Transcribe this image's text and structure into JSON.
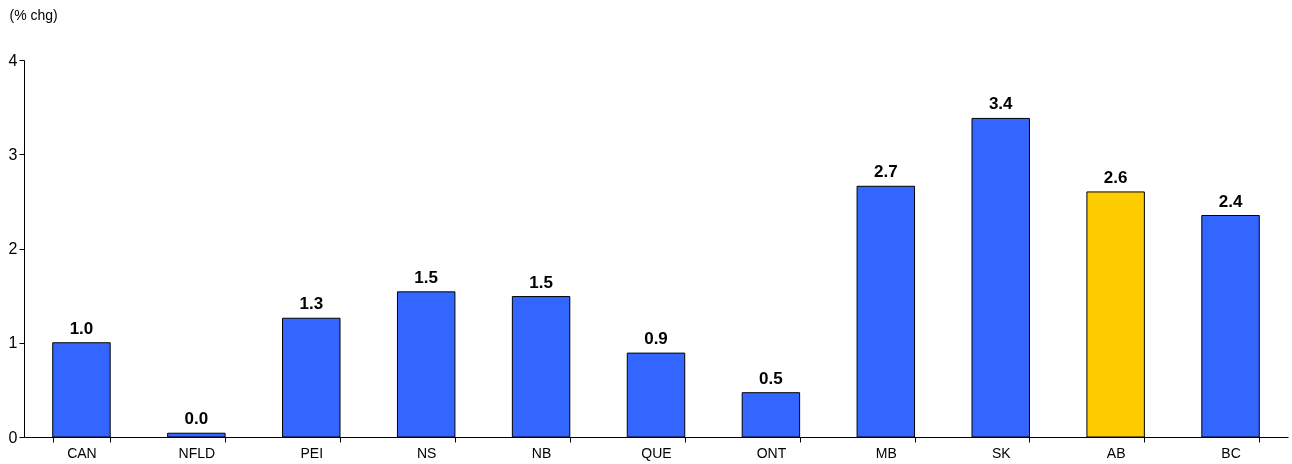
{
  "chart_data": {
    "type": "bar",
    "ylabel": "(% chg)",
    "categories": [
      "CAN",
      "NFLD",
      "PEI",
      "NS",
      "NB",
      "QUE",
      "ONT",
      "MB",
      "SK",
      "AB",
      "BC"
    ],
    "values": [
      1.0,
      0.04,
      1.26,
      1.54,
      1.49,
      0.89,
      0.47,
      2.66,
      3.38,
      2.6,
      2.35
    ],
    "colors": [
      "#3366ff",
      "#3366ff",
      "#3366ff",
      "#3366ff",
      "#3366ff",
      "#3366ff",
      "#3366ff",
      "#3366ff",
      "#3366ff",
      "#ffcc00",
      "#3366ff"
    ],
    "value_labels": [
      "1.0",
      "0.0",
      "1.3",
      "1.5",
      "1.5",
      "0.9",
      "0.5",
      "2.7",
      "3.4",
      "2.6",
      "2.4"
    ],
    "ylim": [
      0,
      4
    ],
    "yticks": [
      0,
      1,
      2,
      3,
      4
    ],
    "grid": false
  }
}
